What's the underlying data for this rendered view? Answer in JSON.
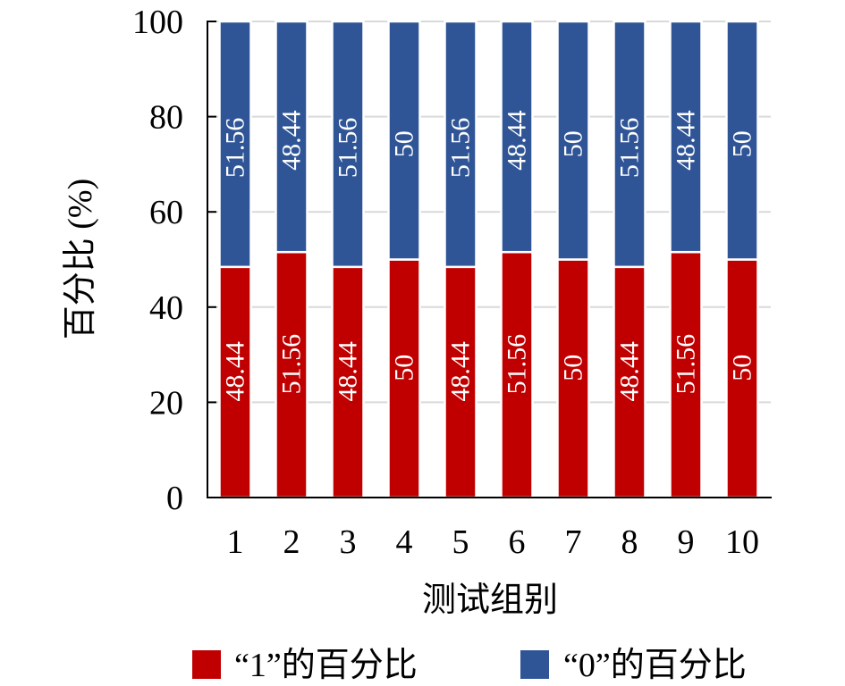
{
  "chart_data": {
    "type": "bar",
    "stacked": true,
    "categories": [
      "1",
      "2",
      "3",
      "4",
      "5",
      "6",
      "7",
      "8",
      "9",
      "10"
    ],
    "series": [
      {
        "name": "“1”的百分比",
        "color": "#C00000",
        "values": [
          48.44,
          51.56,
          48.44,
          50,
          48.44,
          51.56,
          50,
          48.44,
          51.56,
          50
        ]
      },
      {
        "name": "“0”的百分比",
        "color": "#2F5597",
        "values": [
          51.56,
          48.44,
          51.56,
          50,
          51.56,
          48.44,
          50,
          51.56,
          48.44,
          50
        ]
      }
    ],
    "xlabel": "测试组别",
    "ylabel": "百分比 (%)",
    "ylim": [
      0,
      100
    ],
    "yticks": [
      0,
      20,
      40,
      60,
      80,
      100
    ],
    "grid": true,
    "data_labels": true,
    "legend": "bottom"
  }
}
